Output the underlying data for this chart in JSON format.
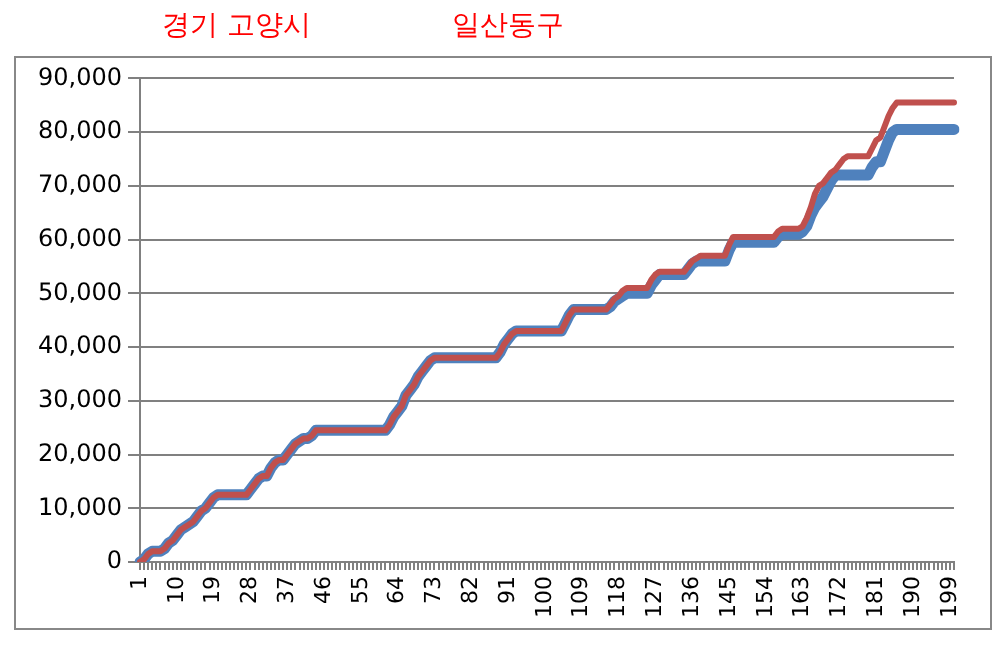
{
  "chart_data": {
    "type": "line",
    "title": "경기 고양시",
    "subtitle": "일산동구",
    "categories": [
      "1",
      null,
      null,
      null,
      null,
      null,
      null,
      null,
      null,
      "10",
      null,
      null,
      null,
      null,
      null,
      null,
      null,
      null,
      "19",
      null,
      null,
      null,
      null,
      null,
      null,
      null,
      null,
      "28",
      null,
      null,
      null,
      null,
      null,
      null,
      null,
      null,
      "37",
      null,
      null,
      null,
      null,
      null,
      null,
      null,
      null,
      "46",
      null,
      null,
      null,
      null,
      null,
      null,
      null,
      null,
      "55",
      null,
      null,
      null,
      null,
      null,
      null,
      null,
      null,
      "64",
      null,
      null,
      null,
      null,
      null,
      null,
      null,
      null,
      "73",
      null,
      null,
      null,
      null,
      null,
      null,
      null,
      null,
      "82",
      null,
      null,
      null,
      null,
      null,
      null,
      null,
      null,
      "91",
      null,
      null,
      null,
      null,
      null,
      null,
      null,
      null,
      "100",
      null,
      null,
      null,
      null,
      null,
      null,
      null,
      null,
      "109",
      null,
      null,
      null,
      null,
      null,
      null,
      null,
      null,
      "118",
      null,
      null,
      null,
      null,
      null,
      null,
      null,
      null,
      "127",
      null,
      null,
      null,
      null,
      null,
      null,
      null,
      null,
      "136",
      null,
      null,
      null,
      null,
      null,
      null,
      null,
      null,
      "145",
      null,
      null,
      null,
      null,
      null,
      null,
      null,
      null,
      "154",
      null,
      null,
      null,
      null,
      null,
      null,
      null,
      null,
      "163",
      null,
      null,
      null,
      null,
      null,
      null,
      null,
      null,
      "172",
      null,
      null,
      null,
      null,
      null,
      null,
      null,
      null,
      "181",
      null,
      null,
      null,
      null,
      null,
      null,
      null,
      null,
      "190",
      null,
      null,
      null,
      null,
      null,
      null,
      null,
      null,
      "199",
      null
    ],
    "series": [
      {
        "color": "#4f81bd",
        "values": [
          0,
          500,
          1500,
          2000,
          2000,
          2000,
          2500,
          3500,
          4000,
          5000,
          6000,
          6500,
          7000,
          7500,
          8500,
          9500,
          10000,
          11000,
          12000,
          12500,
          12500,
          12500,
          12500,
          12500,
          12500,
          12500,
          12500,
          13500,
          14500,
          15500,
          16000,
          16000,
          17500,
          18500,
          19000,
          19000,
          20000,
          21000,
          22000,
          22500,
          23000,
          23000,
          23500,
          24500,
          24500,
          24500,
          24500,
          24500,
          24500,
          24500,
          24500,
          24500,
          24500,
          24500,
          24500,
          24500,
          24500,
          24500,
          24500,
          24500,
          24500,
          25500,
          27000,
          28000,
          29000,
          31000,
          32000,
          33000,
          34500,
          35500,
          36500,
          37500,
          38000,
          38000,
          38000,
          38000,
          38000,
          38000,
          38000,
          38000,
          38000,
          38000,
          38000,
          38000,
          38000,
          38000,
          38000,
          38000,
          39000,
          40500,
          41500,
          42500,
          43000,
          43000,
          43000,
          43000,
          43000,
          43000,
          43000,
          43000,
          43000,
          43000,
          43000,
          43000,
          44500,
          46000,
          47000,
          47000,
          47000,
          47000,
          47000,
          47000,
          47000,
          47000,
          47000,
          47500,
          48500,
          49000,
          49500,
          50000,
          50000,
          50000,
          50000,
          50000,
          50000,
          51500,
          52500,
          53500,
          53500,
          53500,
          53500,
          53500,
          53500,
          53500,
          54500,
          55500,
          56000,
          56000,
          56000,
          56000,
          56000,
          56000,
          56000,
          56000,
          58000,
          59500,
          59500,
          59500,
          59500,
          59500,
          59500,
          59500,
          59500,
          59500,
          59500,
          59500,
          60500,
          61000,
          61000,
          61000,
          61000,
          61000,
          61500,
          62500,
          64500,
          66000,
          67000,
          68000,
          69500,
          71000,
          72000,
          72000,
          72000,
          72000,
          72000,
          72000,
          72000,
          72000,
          72000,
          73500,
          74500,
          74500,
          76500,
          78500,
          80000,
          80500,
          80500,
          80500,
          80500,
          80500,
          80500,
          80500,
          80500,
          80500,
          80500,
          80500,
          80500,
          80500,
          80500,
          80500
        ]
      },
      {
        "color": "#c0504d",
        "values": [
          0,
          500,
          1500,
          2000,
          2000,
          2000,
          2500,
          3500,
          4000,
          5000,
          6000,
          6500,
          7000,
          7500,
          8500,
          9500,
          10000,
          11000,
          12000,
          12500,
          12500,
          12500,
          12500,
          12500,
          12500,
          12500,
          12500,
          13500,
          14500,
          15500,
          16000,
          16000,
          17500,
          18500,
          19000,
          19000,
          20000,
          21000,
          22000,
          22500,
          23000,
          23000,
          23500,
          24500,
          24500,
          24500,
          24500,
          24500,
          24500,
          24500,
          24500,
          24500,
          24500,
          24500,
          24500,
          24500,
          24500,
          24500,
          24500,
          24500,
          24500,
          25500,
          27000,
          28000,
          29000,
          31000,
          32000,
          33000,
          34500,
          35500,
          36500,
          37500,
          38000,
          38000,
          38000,
          38000,
          38000,
          38000,
          38000,
          38000,
          38000,
          38000,
          38000,
          38000,
          38000,
          38000,
          38000,
          38000,
          39000,
          40500,
          41500,
          42500,
          43000,
          43000,
          43000,
          43000,
          43000,
          43000,
          43000,
          43000,
          43000,
          43000,
          43000,
          43000,
          44500,
          46000,
          47000,
          47000,
          47000,
          47000,
          47000,
          47000,
          47000,
          47000,
          47000,
          48000,
          49000,
          49500,
          50500,
          51000,
          51000,
          51000,
          51000,
          51000,
          51000,
          52500,
          53500,
          54000,
          54000,
          54000,
          54000,
          54000,
          54000,
          54000,
          55000,
          56000,
          56500,
          57000,
          57000,
          57000,
          57000,
          57000,
          57000,
          57000,
          59000,
          60500,
          60500,
          60500,
          60500,
          60500,
          60500,
          60500,
          60500,
          60500,
          60500,
          60500,
          61500,
          62000,
          62000,
          62000,
          62000,
          62000,
          62500,
          64000,
          66000,
          68500,
          70000,
          70500,
          71500,
          72500,
          73000,
          74000,
          75000,
          75500,
          75500,
          75500,
          75500,
          75500,
          75500,
          77000,
          78500,
          79000,
          81000,
          83000,
          84500,
          85500,
          85500,
          85500,
          85500,
          85500,
          85500,
          85500,
          85500,
          85500,
          85500,
          85500,
          85500,
          85500,
          85500,
          85500
        ]
      }
    ],
    "ylim": [
      0,
      90000
    ],
    "yticks": [
      {
        "value": 0,
        "label": "0"
      },
      {
        "value": 10000,
        "label": "10,000"
      },
      {
        "value": 20000,
        "label": "20,000"
      },
      {
        "value": 30000,
        "label": "30,000"
      },
      {
        "value": 40000,
        "label": "40,000"
      },
      {
        "value": 50000,
        "label": "50,000"
      },
      {
        "value": 60000,
        "label": "60,000"
      },
      {
        "value": 70000,
        "label": "70,000"
      },
      {
        "value": 80000,
        "label": "80,000"
      },
      {
        "value": 90000,
        "label": "90,000"
      }
    ],
    "grid": "y",
    "legend": false
  }
}
